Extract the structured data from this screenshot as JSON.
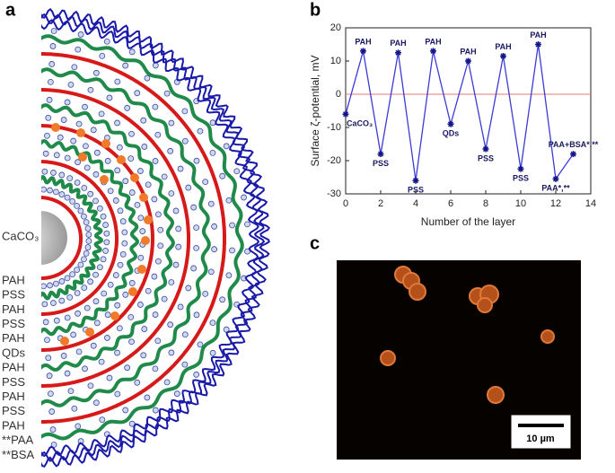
{
  "panel_labels": [
    "a",
    "b",
    "c"
  ],
  "panel_a": {
    "core_label": "CaCO₃",
    "layer_labels": [
      "PAH",
      "PSS",
      "PAH",
      "PSS",
      "PAH",
      "QDs",
      "PAH",
      "PSS",
      "PAH",
      "PSS",
      "PAH",
      "**PAA",
      "**BSA"
    ]
  },
  "chart_data": {
    "type": "line",
    "x": [
      0,
      1,
      2,
      3,
      4,
      5,
      6,
      7,
      8,
      9,
      10,
      11,
      12,
      13
    ],
    "values": [
      -6,
      13,
      -18,
      12.5,
      -26,
      13,
      -9,
      10,
      -16.5,
      11.5,
      -22.5,
      15,
      -25.5,
      -18
    ],
    "point_labels": [
      "CaCO₃",
      "PAH",
      "PSS",
      "PAH",
      "PSS",
      "PAH",
      "QDs",
      "PAH",
      "PSS",
      "PAH",
      "PSS",
      "PAH",
      "PAA*,**",
      "PAA+BSA*,**"
    ],
    "color": "#3b3bd6",
    "xlabel": "Number of the layer",
    "ylabel": "Surface ζ-potential, mV",
    "xlim": [
      0,
      14
    ],
    "xticks": [
      0,
      2,
      4,
      6,
      8,
      10,
      12,
      14
    ],
    "ylim": [
      -30,
      20
    ],
    "yticks": [
      -30,
      -20,
      -10,
      0,
      10,
      20
    ],
    "hline": {
      "value": 0,
      "color": "#e07a7a"
    }
  },
  "panel_c": {
    "scale_bar": "10 µm"
  }
}
